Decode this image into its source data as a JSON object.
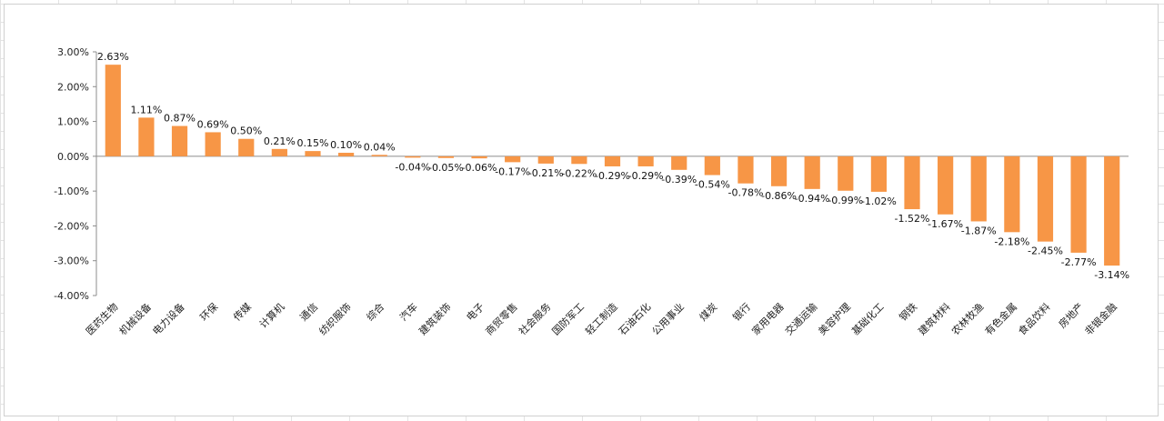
{
  "chart_data": {
    "type": "bar",
    "title": "",
    "xlabel": "",
    "ylabel": "",
    "ylim": [
      -4,
      3
    ],
    "yticks": [
      "3.00%",
      "2.00%",
      "1.00%",
      "0.00%",
      "-1.00%",
      "-2.00%",
      "-3.00%",
      "-4.00%"
    ],
    "grid": false,
    "legend": "none",
    "bar_color": "#f79646",
    "categories": [
      "医药生物",
      "机械设备",
      "电力设备",
      "环保",
      "传媒",
      "计算机",
      "通信",
      "纺织服饰",
      "综合",
      "汽车",
      "建筑装饰",
      "电子",
      "商贸零售",
      "社会服务",
      "国防军工",
      "轻工制造",
      "石油石化",
      "公用事业",
      "煤炭",
      "银行",
      "家用电器",
      "交通运输",
      "美容护理",
      "基础化工",
      "钢铁",
      "建筑材料",
      "农林牧渔",
      "有色金属",
      "食品饮料",
      "房地产",
      "非银金融"
    ],
    "values": [
      2.63,
      1.11,
      0.87,
      0.69,
      0.5,
      0.21,
      0.15,
      0.1,
      0.04,
      -0.04,
      -0.05,
      -0.06,
      -0.17,
      -0.21,
      -0.22,
      -0.29,
      -0.29,
      -0.39,
      -0.54,
      -0.78,
      -0.86,
      -0.94,
      -0.99,
      -1.02,
      -1.52,
      -1.67,
      -1.87,
      -2.18,
      -2.45,
      -2.77,
      -3.14
    ],
    "data_labels": [
      "2.63%",
      "1.11%",
      "0.87%",
      "0.69%",
      "0.50%",
      "0.21%",
      "0.15%",
      "0.10%",
      "0.04%",
      "-0.04%",
      "-0.05%",
      "-0.06%",
      "-0.17%",
      "-0.21%",
      "-0.22%",
      "-0.29%",
      "-0.29%",
      "-0.39%",
      "-0.54%",
      "-0.78%",
      "-0.86%",
      "-0.94%",
      "-0.99%",
      "-1.02%",
      "-1.52%",
      "-1.67%",
      "-1.87%",
      "-2.18%",
      "-2.45%",
      "-2.77%",
      "-3.14%"
    ]
  }
}
